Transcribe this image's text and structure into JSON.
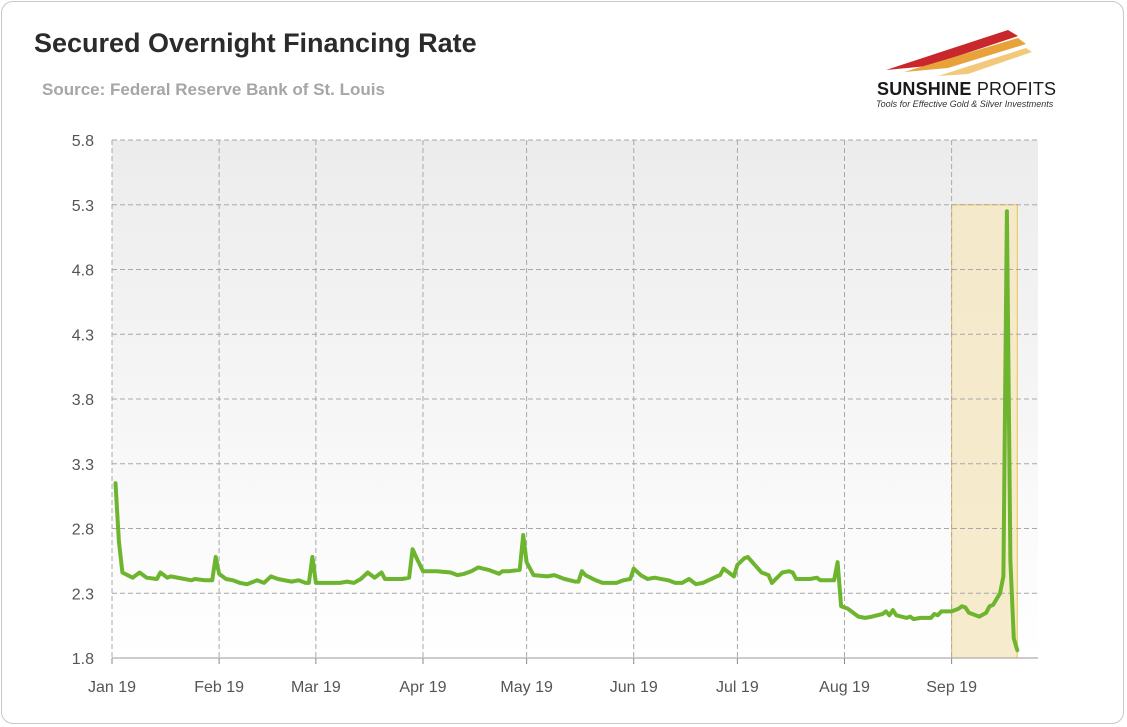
{
  "title": "Secured Overnight Financing Rate",
  "subtitle": "Source: Federal Reserve Bank of St. Louis",
  "logo": {
    "brand_bold": "SUNSHINE",
    "brand_light": " PROFITS",
    "tagline": "Tools for Effective Gold & Silver Investments"
  },
  "colors": {
    "line": "#6db52e",
    "highlight_fill": "#f5e9c4",
    "highlight_border": "#e8c34a",
    "grid": "#a8a8a8",
    "text": "#555555"
  },
  "chart_data": {
    "type": "line",
    "title": "Secured Overnight Financing Rate",
    "x_unit": "day of 2019 (1 = Jan 1)",
    "xlim": [
      1,
      269
    ],
    "ylim": [
      1.8,
      5.8
    ],
    "y_ticks": [
      "1.8",
      "2.3",
      "2.8",
      "3.3",
      "3.8",
      "4.3",
      "4.8",
      "5.3",
      "5.8"
    ],
    "x_ticks": [
      {
        "label": "Jan 19",
        "day": 1
      },
      {
        "label": "Feb 19",
        "day": 32
      },
      {
        "label": "Mar 19",
        "day": 60
      },
      {
        "label": "Apr 19",
        "day": 91
      },
      {
        "label": "May 19",
        "day": 121
      },
      {
        "label": "Jun 19",
        "day": 152
      },
      {
        "label": "Jul 19",
        "day": 182
      },
      {
        "label": "Aug 19",
        "day": 213
      },
      {
        "label": "Sep 19",
        "day": 244
      }
    ],
    "grid": true,
    "highlight": {
      "x_from": 244,
      "x_to": 263,
      "y_from": 1.8,
      "y_to": 5.3
    },
    "series": [
      {
        "points": [
          [
            2,
            3.15
          ],
          [
            3,
            2.7
          ],
          [
            4,
            2.46
          ],
          [
            7,
            2.42
          ],
          [
            9,
            2.46
          ],
          [
            11,
            2.42
          ],
          [
            14,
            2.41
          ],
          [
            15,
            2.46
          ],
          [
            17,
            2.42
          ],
          [
            18,
            2.43
          ],
          [
            22,
            2.41
          ],
          [
            24,
            2.4
          ],
          [
            25,
            2.41
          ],
          [
            28,
            2.4
          ],
          [
            30,
            2.4
          ],
          [
            31,
            2.58
          ],
          [
            32,
            2.45
          ],
          [
            34,
            2.41
          ],
          [
            36,
            2.4
          ],
          [
            38,
            2.38
          ],
          [
            40,
            2.37
          ],
          [
            43,
            2.4
          ],
          [
            45,
            2.38
          ],
          [
            47,
            2.43
          ],
          [
            49,
            2.41
          ],
          [
            53,
            2.39
          ],
          [
            55,
            2.4
          ],
          [
            57,
            2.38
          ],
          [
            58,
            2.38
          ],
          [
            59,
            2.58
          ],
          [
            60,
            2.38
          ],
          [
            62,
            2.38
          ],
          [
            65,
            2.38
          ],
          [
            67,
            2.38
          ],
          [
            69,
            2.39
          ],
          [
            71,
            2.38
          ],
          [
            73,
            2.41
          ],
          [
            75,
            2.46
          ],
          [
            77,
            2.42
          ],
          [
            79,
            2.46
          ],
          [
            80,
            2.41
          ],
          [
            85,
            2.41
          ],
          [
            87,
            2.42
          ],
          [
            88,
            2.64
          ],
          [
            89,
            2.58
          ],
          [
            91,
            2.47
          ],
          [
            95,
            2.47
          ],
          [
            99,
            2.46
          ],
          [
            101,
            2.44
          ],
          [
            103,
            2.45
          ],
          [
            105,
            2.47
          ],
          [
            107,
            2.5
          ],
          [
            110,
            2.48
          ],
          [
            113,
            2.45
          ],
          [
            114,
            2.47
          ],
          [
            116,
            2.47
          ],
          [
            119,
            2.48
          ],
          [
            120,
            2.75
          ],
          [
            121,
            2.54
          ],
          [
            123,
            2.44
          ],
          [
            127,
            2.43
          ],
          [
            129,
            2.44
          ],
          [
            132,
            2.41
          ],
          [
            135,
            2.39
          ],
          [
            136,
            2.39
          ],
          [
            137,
            2.47
          ],
          [
            138,
            2.44
          ],
          [
            141,
            2.4
          ],
          [
            143,
            2.38
          ],
          [
            147,
            2.38
          ],
          [
            149,
            2.4
          ],
          [
            151,
            2.41
          ],
          [
            152,
            2.49
          ],
          [
            154,
            2.44
          ],
          [
            156,
            2.41
          ],
          [
            158,
            2.42
          ],
          [
            162,
            2.4
          ],
          [
            164,
            2.38
          ],
          [
            166,
            2.38
          ],
          [
            168,
            2.41
          ],
          [
            170,
            2.37
          ],
          [
            172,
            2.38
          ],
          [
            176,
            2.43
          ],
          [
            177,
            2.44
          ],
          [
            178,
            2.49
          ],
          [
            181,
            2.43
          ],
          [
            182,
            2.52
          ],
          [
            184,
            2.57
          ],
          [
            185,
            2.58
          ],
          [
            187,
            2.52
          ],
          [
            189,
            2.46
          ],
          [
            191,
            2.44
          ],
          [
            192,
            2.38
          ],
          [
            195,
            2.46
          ],
          [
            197,
            2.47
          ],
          [
            198,
            2.46
          ],
          [
            199,
            2.41
          ],
          [
            203,
            2.41
          ],
          [
            205,
            2.42
          ],
          [
            206,
            2.4
          ],
          [
            210,
            2.4
          ],
          [
            211,
            2.54
          ],
          [
            212,
            2.2
          ],
          [
            214,
            2.18
          ],
          [
            216,
            2.14
          ],
          [
            217,
            2.12
          ],
          [
            219,
            2.11
          ],
          [
            221,
            2.12
          ],
          [
            224,
            2.14
          ],
          [
            225,
            2.16
          ],
          [
            226,
            2.13
          ],
          [
            227,
            2.17
          ],
          [
            228,
            2.13
          ],
          [
            231,
            2.11
          ],
          [
            232,
            2.12
          ],
          [
            233,
            2.1
          ],
          [
            235,
            2.11
          ],
          [
            238,
            2.11
          ],
          [
            239,
            2.14
          ],
          [
            240,
            2.13
          ],
          [
            241,
            2.16
          ],
          [
            244,
            2.16
          ],
          [
            246,
            2.18
          ],
          [
            247,
            2.2
          ],
          [
            248,
            2.19
          ],
          [
            249,
            2.15
          ],
          [
            252,
            2.12
          ],
          [
            254,
            2.15
          ],
          [
            255,
            2.2
          ],
          [
            256,
            2.21
          ],
          [
            258,
            2.3
          ],
          [
            259,
            2.43
          ],
          [
            260,
            5.25
          ],
          [
            261,
            2.55
          ],
          [
            262,
            1.95
          ],
          [
            263,
            1.86
          ]
        ]
      }
    ]
  }
}
